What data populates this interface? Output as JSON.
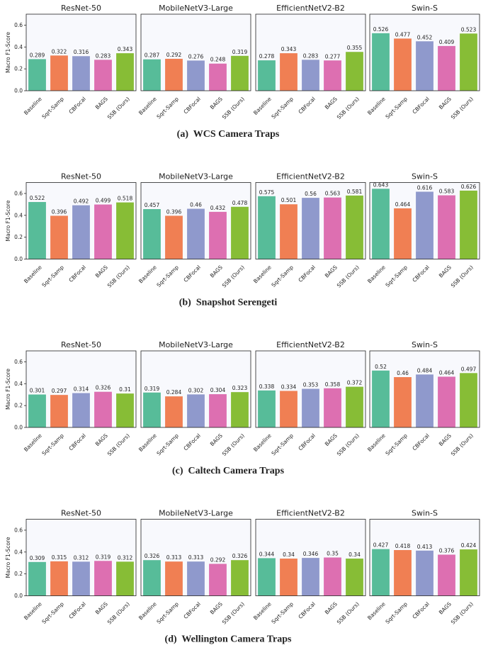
{
  "chart_data": [
    {
      "type": "bar",
      "title": "ResNet-50",
      "ylabel": "Macro F1-Score",
      "categories": [
        "Baseline",
        "Sqrt-Samp",
        "CBFocal",
        "BAGS",
        "SSB (Ours)"
      ],
      "values": [
        0.289,
        0.322,
        0.316,
        0.283,
        0.343
      ],
      "colors": [
        "#57bc99",
        "#f07f53",
        "#8f99cc",
        "#dd6fb1",
        "#87bd36"
      ],
      "ylim": [
        0,
        0.7
      ],
      "yticks": [
        {
          "value": 0,
          "label": "0.0"
        },
        0.2,
        0.4,
        0.6
      ]
    },
    {
      "type": "bar",
      "title": "MobileNetV3-Large",
      "categories": [
        "Baseline",
        "Sqrt-Samp",
        "CBFocal",
        "BAGS",
        "SSB (Ours)"
      ],
      "values": [
        0.287,
        0.292,
        0.276,
        0.248,
        0.319
      ],
      "colors": [
        "#57bc99",
        "#f07f53",
        "#8f99cc",
        "#dd6fb1",
        "#87bd36"
      ],
      "ylim": [
        0,
        0.7
      ]
    },
    {
      "type": "bar",
      "title": "EfficientNetV2-B2",
      "categories": [
        "Baseline",
        "Sqrt-Samp",
        "CBFocal",
        "BAGS",
        "SSB (Ours)"
      ],
      "values": [
        0.278,
        0.343,
        0.283,
        0.277,
        0.355
      ],
      "colors": [
        "#57bc99",
        "#f07f53",
        "#8f99cc",
        "#dd6fb1",
        "#87bd36"
      ],
      "ylim": [
        0,
        0.7
      ]
    },
    {
      "type": "bar",
      "title": "Swin-S",
      "categories": [
        "Baseline",
        "Sqrt-Samp",
        "CBFocal",
        "BAGS",
        "SSB (Ours)"
      ],
      "values": [
        0.526,
        0.477,
        0.452,
        0.409,
        0.523
      ],
      "colors": [
        "#57bc99",
        "#f07f53",
        "#8f99cc",
        "#dd6fb1",
        "#87bd36"
      ],
      "ylim": [
        0,
        0.7
      ]
    },
    {
      "type": "bar",
      "title": "ResNet-50",
      "ylabel": "Macro F1-Score",
      "categories": [
        "Baseline",
        "Sqrt-Samp",
        "CBFocal",
        "BAGS",
        "SSB (Ours)"
      ],
      "values": [
        0.522,
        0.396,
        0.492,
        0.499,
        0.518
      ],
      "colors": [
        "#57bc99",
        "#f07f53",
        "#8f99cc",
        "#dd6fb1",
        "#87bd36"
      ],
      "ylim": [
        0,
        0.7
      ],
      "yticks": [
        {
          "value": 0,
          "label": "0.0"
        },
        0.2,
        0.4,
        0.6
      ]
    },
    {
      "type": "bar",
      "title": "MobileNetV3-Large",
      "categories": [
        "Baseline",
        "Sqrt-Samp",
        "CBFocal",
        "BAGS",
        "SSB (Ours)"
      ],
      "values": [
        0.457,
        0.396,
        0.46,
        0.432,
        0.478
      ],
      "colors": [
        "#57bc99",
        "#f07f53",
        "#8f99cc",
        "#dd6fb1",
        "#87bd36"
      ],
      "ylim": [
        0,
        0.7
      ]
    },
    {
      "type": "bar",
      "title": "EfficientNetV2-B2",
      "categories": [
        "Baseline",
        "Sqrt-Samp",
        "CBFocal",
        "BAGS",
        "SSB (Ours)"
      ],
      "values": [
        0.575,
        0.501,
        0.56,
        0.563,
        0.581
      ],
      "colors": [
        "#57bc99",
        "#f07f53",
        "#8f99cc",
        "#dd6fb1",
        "#87bd36"
      ],
      "ylim": [
        0,
        0.7
      ]
    },
    {
      "type": "bar",
      "title": "Swin-S",
      "categories": [
        "Baseline",
        "Sqrt-Samp",
        "CBFocal",
        "BAGS",
        "SSB (Ours)"
      ],
      "values": [
        0.643,
        0.464,
        0.616,
        0.583,
        0.626
      ],
      "colors": [
        "#57bc99",
        "#f07f53",
        "#8f99cc",
        "#dd6fb1",
        "#87bd36"
      ],
      "ylim": [
        0,
        0.7
      ]
    },
    {
      "type": "bar",
      "title": "ResNet-50",
      "ylabel": "Macro F1-Score",
      "categories": [
        "Baseline",
        "Sqrt-Samp",
        "CBFocal",
        "BAGS",
        "SSB (Ours)"
      ],
      "values": [
        0.301,
        0.297,
        0.314,
        0.326,
        0.31
      ],
      "colors": [
        "#57bc99",
        "#f07f53",
        "#8f99cc",
        "#dd6fb1",
        "#87bd36"
      ],
      "ylim": [
        0,
        0.7
      ],
      "yticks": [
        {
          "value": 0,
          "label": "0.0"
        },
        0.2,
        0.4,
        0.6
      ]
    },
    {
      "type": "bar",
      "title": "MobileNetV3-Large",
      "categories": [
        "Baseline",
        "Sqrt-Samp",
        "CBFocal",
        "BAGS",
        "SSB (Ours)"
      ],
      "values": [
        0.319,
        0.284,
        0.302,
        0.304,
        0.323
      ],
      "colors": [
        "#57bc99",
        "#f07f53",
        "#8f99cc",
        "#dd6fb1",
        "#87bd36"
      ],
      "ylim": [
        0,
        0.7
      ]
    },
    {
      "type": "bar",
      "title": "EfficientNetV2-B2",
      "categories": [
        "Baseline",
        "Sqrt-Samp",
        "CBFocal",
        "BAGS",
        "SSB (Ours)"
      ],
      "values": [
        0.338,
        0.334,
        0.353,
        0.358,
        0.372
      ],
      "colors": [
        "#57bc99",
        "#f07f53",
        "#8f99cc",
        "#dd6fb1",
        "#87bd36"
      ],
      "ylim": [
        0,
        0.7
      ]
    },
    {
      "type": "bar",
      "title": "Swin-S",
      "categories": [
        "Baseline",
        "Sqrt-Samp",
        "CBFocal",
        "BAGS",
        "SSB (Ours)"
      ],
      "values": [
        0.52,
        0.46,
        0.484,
        0.464,
        0.497
      ],
      "colors": [
        "#57bc99",
        "#f07f53",
        "#8f99cc",
        "#dd6fb1",
        "#87bd36"
      ],
      "ylim": [
        0,
        0.7
      ]
    },
    {
      "type": "bar",
      "title": "ResNet-50",
      "ylabel": "Macro F1-Score",
      "categories": [
        "Baseline",
        "Sqrt-Samp",
        "CBFocal",
        "BAGS",
        "SSB (Ours)"
      ],
      "values": [
        0.309,
        0.315,
        0.312,
        0.319,
        0.312
      ],
      "colors": [
        "#57bc99",
        "#f07f53",
        "#8f99cc",
        "#dd6fb1",
        "#87bd36"
      ],
      "ylim": [
        0,
        0.7
      ],
      "yticks": [
        {
          "value": 0,
          "label": "0.0"
        },
        0.2,
        0.4,
        0.6
      ]
    },
    {
      "type": "bar",
      "title": "MobileNetV3-Large",
      "categories": [
        "Baseline",
        "Sqrt-Samp",
        "CBFocal",
        "BAGS",
        "SSB (Ours)"
      ],
      "values": [
        0.326,
        0.313,
        0.313,
        0.292,
        0.326
      ],
      "colors": [
        "#57bc99",
        "#f07f53",
        "#8f99cc",
        "#dd6fb1",
        "#87bd36"
      ],
      "ylim": [
        0,
        0.7
      ]
    },
    {
      "type": "bar",
      "title": "EfficientNetV2-B2",
      "categories": [
        "Baseline",
        "Sqrt-Samp",
        "CBFocal",
        "BAGS",
        "SSB (Ours)"
      ],
      "values": [
        0.344,
        0.34,
        0.346,
        0.35,
        0.34
      ],
      "colors": [
        "#57bc99",
        "#f07f53",
        "#8f99cc",
        "#dd6fb1",
        "#87bd36"
      ],
      "ylim": [
        0,
        0.7
      ]
    },
    {
      "type": "bar",
      "title": "Swin-S",
      "categories": [
        "Baseline",
        "Sqrt-Samp",
        "CBFocal",
        "BAGS",
        "SSB (Ours)"
      ],
      "values": [
        0.427,
        0.418,
        0.413,
        0.376,
        0.424
      ],
      "colors": [
        "#57bc99",
        "#f07f53",
        "#8f99cc",
        "#dd6fb1",
        "#87bd36"
      ],
      "ylim": [
        0,
        0.7
      ]
    }
  ],
  "captions": [
    "(a)  WCS Camera Traps",
    "(b)  Snapshot Serengeti",
    "(c)  Caltech Camera Traps",
    "(d)  Wellington Camera Traps"
  ]
}
